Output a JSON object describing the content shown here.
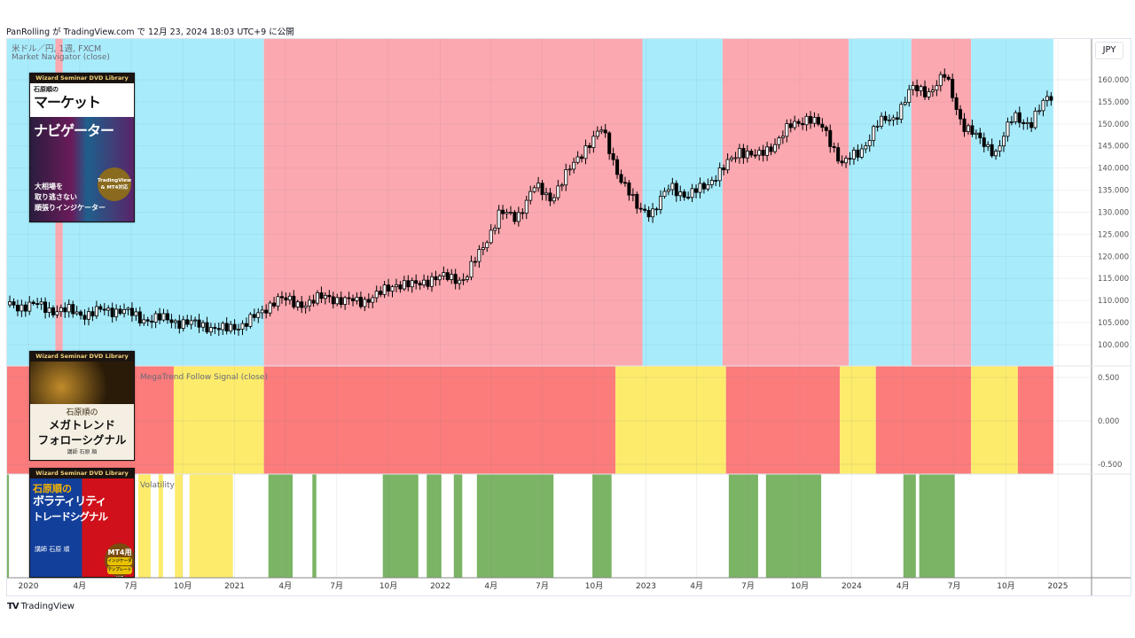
{
  "header": {
    "published": "PanRolling が TradingView.com で 12月 23, 2024 18:03 UTC+9 に公開"
  },
  "main_pane": {
    "symbol": "米ドル／円, 1週, FXCM",
    "indicator": "Market Navigator (close)"
  },
  "mega_pane": {
    "indicator": "MegaTrend Follow Signal (close)"
  },
  "vol_pane": {
    "indicator": "Volatility"
  },
  "price_scale": {
    "currency": "JPY",
    "ticks": [
      "160.000",
      "155.000",
      "150.000",
      "145.000",
      "140.000",
      "135.000",
      "130.000",
      "125.000",
      "120.000",
      "115.000",
      "110.000",
      "105.000",
      "100.000"
    ]
  },
  "mega_scale": {
    "ticks": [
      "0.500",
      "0.000",
      "-0.500"
    ]
  },
  "footer": {
    "brand": "TradingView"
  },
  "colors": {
    "blue": "#a8ecfc",
    "pink": "#fca8b0",
    "red": "#fc7b7b",
    "yellow": "#fdec6b",
    "green": "#7ab464"
  },
  "covers": [
    {
      "series": "Wizard Seminar DVD Library",
      "author_title": "石原順の",
      "title1": "マーケット",
      "title2": "ナビゲーター",
      "subtitle": [
        "大相場を",
        "取り逃さない",
        "順張りインジケーター"
      ],
      "badge": "TradingView & MT4対応"
    },
    {
      "series": "Wizard Seminar DVD Library",
      "author_title": "石原順の",
      "title1": "メガトレンド",
      "title2": "フォローシグナル",
      "author": "講師 石原 順"
    },
    {
      "series": "Wizard Seminar DVD Library",
      "author_title": "石原順の",
      "title1": "ボラティリティ",
      "title2": "トレードシグナル",
      "author": "講師 石原 順",
      "badge": "MT4用",
      "badge_a": "インジケータ",
      "badge_b": "テンプレート",
      "badge_c": "付き"
    }
  ],
  "chart_data": {
    "type": "candlestick",
    "title": "USD/JPY weekly, FXCM",
    "ylim": [
      96,
      163
    ],
    "x_range": [
      "2019-11-24",
      "2024-12-24"
    ],
    "x_ticks": [
      {
        "date": "2020-01-01",
        "label": "2020"
      },
      {
        "date": "2020-04-01",
        "label": "4月"
      },
      {
        "date": "2020-07-01",
        "label": "7月"
      },
      {
        "date": "2020-10-01",
        "label": "10月"
      },
      {
        "date": "2021-01-01",
        "label": "2021"
      },
      {
        "date": "2021-04-01",
        "label": "4月"
      },
      {
        "date": "2021-07-01",
        "label": "7月"
      },
      {
        "date": "2021-10-01",
        "label": "10月"
      },
      {
        "date": "2022-01-01",
        "label": "2022"
      },
      {
        "date": "2022-04-01",
        "label": "4月"
      },
      {
        "date": "2022-07-01",
        "label": "7月"
      },
      {
        "date": "2022-10-01",
        "label": "10月"
      },
      {
        "date": "2023-01-01",
        "label": "2023"
      },
      {
        "date": "2023-04-01",
        "label": "4月"
      },
      {
        "date": "2023-07-01",
        "label": "7月"
      },
      {
        "date": "2023-10-01",
        "label": "10月"
      },
      {
        "date": "2024-01-01",
        "label": "2024"
      },
      {
        "date": "2024-04-01",
        "label": "4月"
      },
      {
        "date": "2024-07-01",
        "label": "7月"
      },
      {
        "date": "2024-10-01",
        "label": "10月"
      },
      {
        "date": "2025-01-01",
        "label": "2025"
      }
    ],
    "monthly_close": {
      "start": "2019-11-15",
      "values": [
        109.2,
        108.8,
        108.9,
        107.9,
        107.5,
        106.9,
        107.8,
        107.9,
        105.9,
        105.9,
        105.5,
        104.7,
        104.3,
        103.2,
        104.7,
        106.6,
        110.7,
        109.3,
        109.6,
        111.1,
        109.7,
        110.0,
        111.3,
        114.0,
        113.2,
        115.1,
        115.1,
        115.0,
        121.7,
        129.8,
        128.7,
        135.7,
        133.2,
        138.9,
        144.7,
        148.7,
        138.1,
        131.1,
        130.1,
        136.2,
        133.3,
        136.3,
        139.3,
        144.3,
        142.3,
        145.5,
        149.4,
        151.7,
        148.2,
        141.0,
        143.4,
        149.9,
        151.3,
        157.8,
        157.3,
        160.9,
        150.0,
        146.2,
        143.6,
        152.0,
        149.8,
        156.5
      ]
    },
    "market_navigator": [
      {
        "from": "2019-11-24",
        "to": "2020-02-18",
        "state": "blue"
      },
      {
        "from": "2020-02-18",
        "to": "2020-03-02",
        "state": "pink"
      },
      {
        "from": "2020-03-02",
        "to": "2021-02-22",
        "state": "blue"
      },
      {
        "from": "2021-02-22",
        "to": "2022-12-26",
        "state": "pink"
      },
      {
        "from": "2022-12-26",
        "to": "2023-05-17",
        "state": "blue"
      },
      {
        "from": "2023-05-17",
        "to": "2023-12-27",
        "state": "pink"
      },
      {
        "from": "2023-12-27",
        "to": "2024-04-16",
        "state": "blue"
      },
      {
        "from": "2024-04-16",
        "to": "2024-07-31",
        "state": "pink"
      },
      {
        "from": "2024-07-31",
        "to": "2024-12-24",
        "state": "blue"
      }
    ],
    "megatrend": [
      {
        "from": "2019-11-24",
        "to": "2020-09-15",
        "state": "red"
      },
      {
        "from": "2020-09-15",
        "to": "2021-02-22",
        "state": "yellow"
      },
      {
        "from": "2021-02-22",
        "to": "2022-11-08",
        "state": "red"
      },
      {
        "from": "2022-11-08",
        "to": "2023-05-23",
        "state": "yellow"
      },
      {
        "from": "2023-05-23",
        "to": "2023-12-11",
        "state": "red"
      },
      {
        "from": "2023-12-11",
        "to": "2024-02-13",
        "state": "yellow"
      },
      {
        "from": "2024-02-13",
        "to": "2024-07-31",
        "state": "red"
      },
      {
        "from": "2024-07-31",
        "to": "2024-10-22",
        "state": "yellow"
      },
      {
        "from": "2024-10-22",
        "to": "2024-12-24",
        "state": "red"
      }
    ],
    "volatility": [
      {
        "from": "2020-07-14",
        "to": "2020-08-05",
        "state": "yellow"
      },
      {
        "from": "2020-08-19",
        "to": "2020-08-27",
        "state": "yellow"
      },
      {
        "from": "2020-09-17",
        "to": "2020-10-01",
        "state": "yellow"
      },
      {
        "from": "2020-10-13",
        "to": "2020-12-29",
        "state": "yellow"
      },
      {
        "from": "2021-03-02",
        "to": "2021-04-14",
        "state": "green"
      },
      {
        "from": "2021-05-19",
        "to": "2021-05-26",
        "state": "green"
      },
      {
        "from": "2021-09-21",
        "to": "2021-11-23",
        "state": "green"
      },
      {
        "from": "2021-12-08",
        "to": "2022-01-03",
        "state": "green"
      },
      {
        "from": "2022-01-25",
        "to": "2022-02-09",
        "state": "green"
      },
      {
        "from": "2022-03-07",
        "to": "2022-07-21",
        "state": "green"
      },
      {
        "from": "2022-09-28",
        "to": "2022-11-01",
        "state": "green"
      },
      {
        "from": "2023-05-28",
        "to": "2023-07-19",
        "state": "green"
      },
      {
        "from": "2023-08-02",
        "to": "2023-11-08",
        "state": "green"
      },
      {
        "from": "2024-04-02",
        "to": "2024-04-24",
        "state": "green"
      },
      {
        "from": "2024-04-30",
        "to": "2024-07-02",
        "state": "green"
      }
    ]
  }
}
